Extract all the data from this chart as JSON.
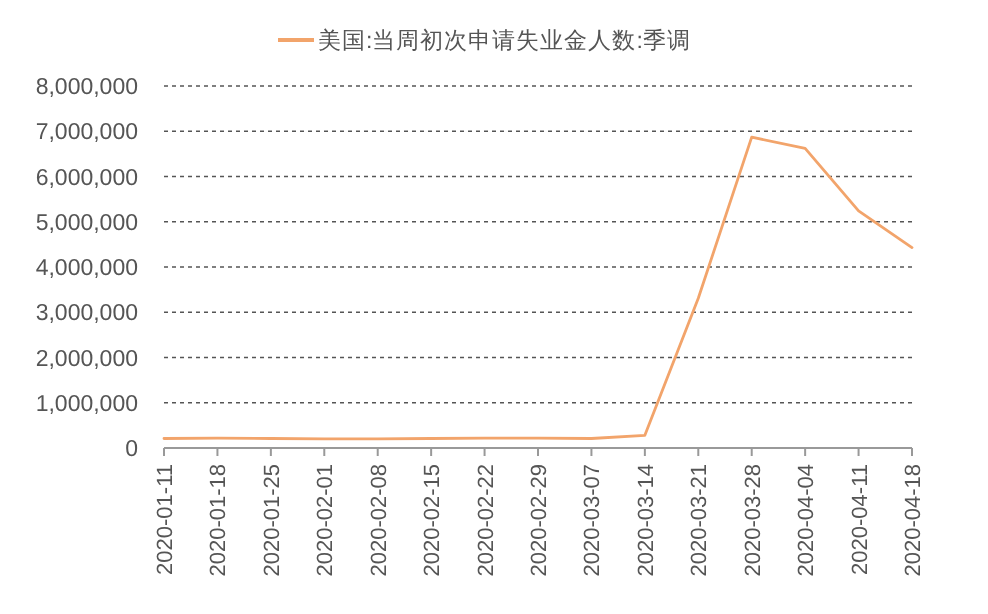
{
  "chart_data": {
    "type": "line",
    "legend": "top",
    "grid": "y",
    "line_style": "solid",
    "marker": "none",
    "categories": [
      "2020-01-11",
      "2020-01-18",
      "2020-01-25",
      "2020-02-01",
      "2020-02-08",
      "2020-02-15",
      "2020-02-22",
      "2020-02-29",
      "2020-03-07",
      "2020-03-14",
      "2020-03-21",
      "2020-03-28",
      "2020-04-04",
      "2020-04-11",
      "2020-04-18"
    ],
    "series": [
      {
        "name": "美国:当周初次申请失业金人数:季调",
        "color": "#f2a46b",
        "values": [
          210000,
          220000,
          210000,
          200000,
          200000,
          210000,
          220000,
          220000,
          210000,
          280000,
          3310000,
          6870000,
          6620000,
          5240000,
          4430000
        ]
      }
    ],
    "ylim": [
      0,
      8000000
    ],
    "yticks": [
      0,
      {
        "value": 1000000,
        "label": "1,000,000"
      },
      {
        "value": 2000000,
        "label": "2,000,000"
      },
      {
        "value": 3000000,
        "label": "3,000,000"
      },
      {
        "value": 4000000,
        "label": "4,000,000"
      },
      {
        "value": 5000000,
        "label": "5,000,000"
      },
      {
        "value": 6000000,
        "label": "6,000,000"
      },
      {
        "value": 7000000,
        "label": "7,000,000"
      },
      {
        "value": 8000000,
        "label": "8,000,000"
      }
    ]
  }
}
